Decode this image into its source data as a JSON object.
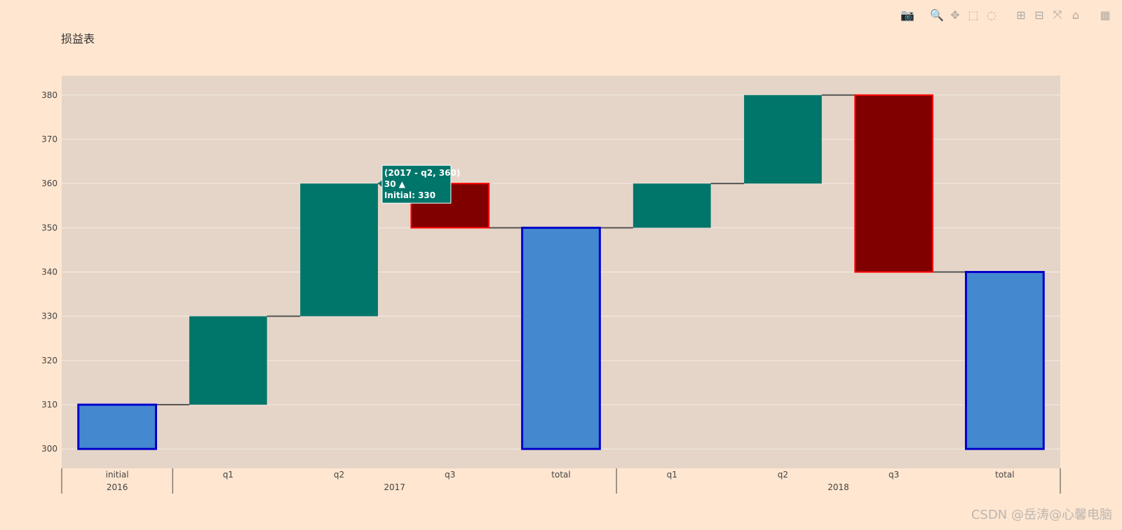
{
  "title": "损益表",
  "watermark": "CSDN @岳涛@心馨电脑",
  "modebar": [
    {
      "name": "camera-icon",
      "glyph": "📷"
    },
    {
      "name": "zoom-icon",
      "glyph": "🔍"
    },
    {
      "name": "pan-icon",
      "glyph": "✥"
    },
    {
      "name": "box-select-icon",
      "glyph": "⬚"
    },
    {
      "name": "lasso-select-icon",
      "glyph": "◌"
    },
    {
      "name": "zoom-in-icon",
      "glyph": "⊞"
    },
    {
      "name": "zoom-out-icon",
      "glyph": "⊟"
    },
    {
      "name": "autoscale-icon",
      "glyph": "⤧"
    },
    {
      "name": "reset-axes-icon",
      "glyph": "⌂"
    },
    {
      "name": "plotly-logo-icon",
      "glyph": "▦"
    }
  ],
  "chart_data": {
    "type": "waterfall",
    "categories": [
      {
        "group": "2016",
        "label": "initial",
        "measure": "absolute",
        "value": 310
      },
      {
        "group": "2017",
        "label": "q1",
        "measure": "relative",
        "value": 20
      },
      {
        "group": "2017",
        "label": "q2",
        "measure": "relative",
        "value": 30
      },
      {
        "group": "2017",
        "label": "q3",
        "measure": "relative",
        "value": -10
      },
      {
        "group": "2017",
        "label": "total",
        "measure": "total",
        "value": 350
      },
      {
        "group": "2018",
        "label": "q1",
        "measure": "relative",
        "value": 10
      },
      {
        "group": "2018",
        "label": "q2",
        "measure": "relative",
        "value": 20
      },
      {
        "group": "2018",
        "label": "q3",
        "measure": "relative",
        "value": -40
      },
      {
        "group": "2018",
        "label": "total",
        "measure": "total",
        "value": 340
      }
    ],
    "groups": [
      "2016",
      "2017",
      "2018"
    ],
    "ylim": [
      295.6,
      384.4
    ],
    "yticks": [
      300,
      310,
      320,
      330,
      340,
      350,
      360,
      370,
      380
    ],
    "base": 300,
    "colors": {
      "increasing": "#00756a",
      "decreasing": "#800000",
      "decreasing_line": "#ff0000",
      "total": "#4488d0",
      "total_line": "#0000cc",
      "connector": "#555555",
      "plot_bg": "#e5d5c8",
      "grid": "#f4ece4"
    },
    "tooltip": {
      "line1": "(2017 - q2, 360)",
      "line2": "30 ▲",
      "line3": "Initial: 330"
    }
  }
}
